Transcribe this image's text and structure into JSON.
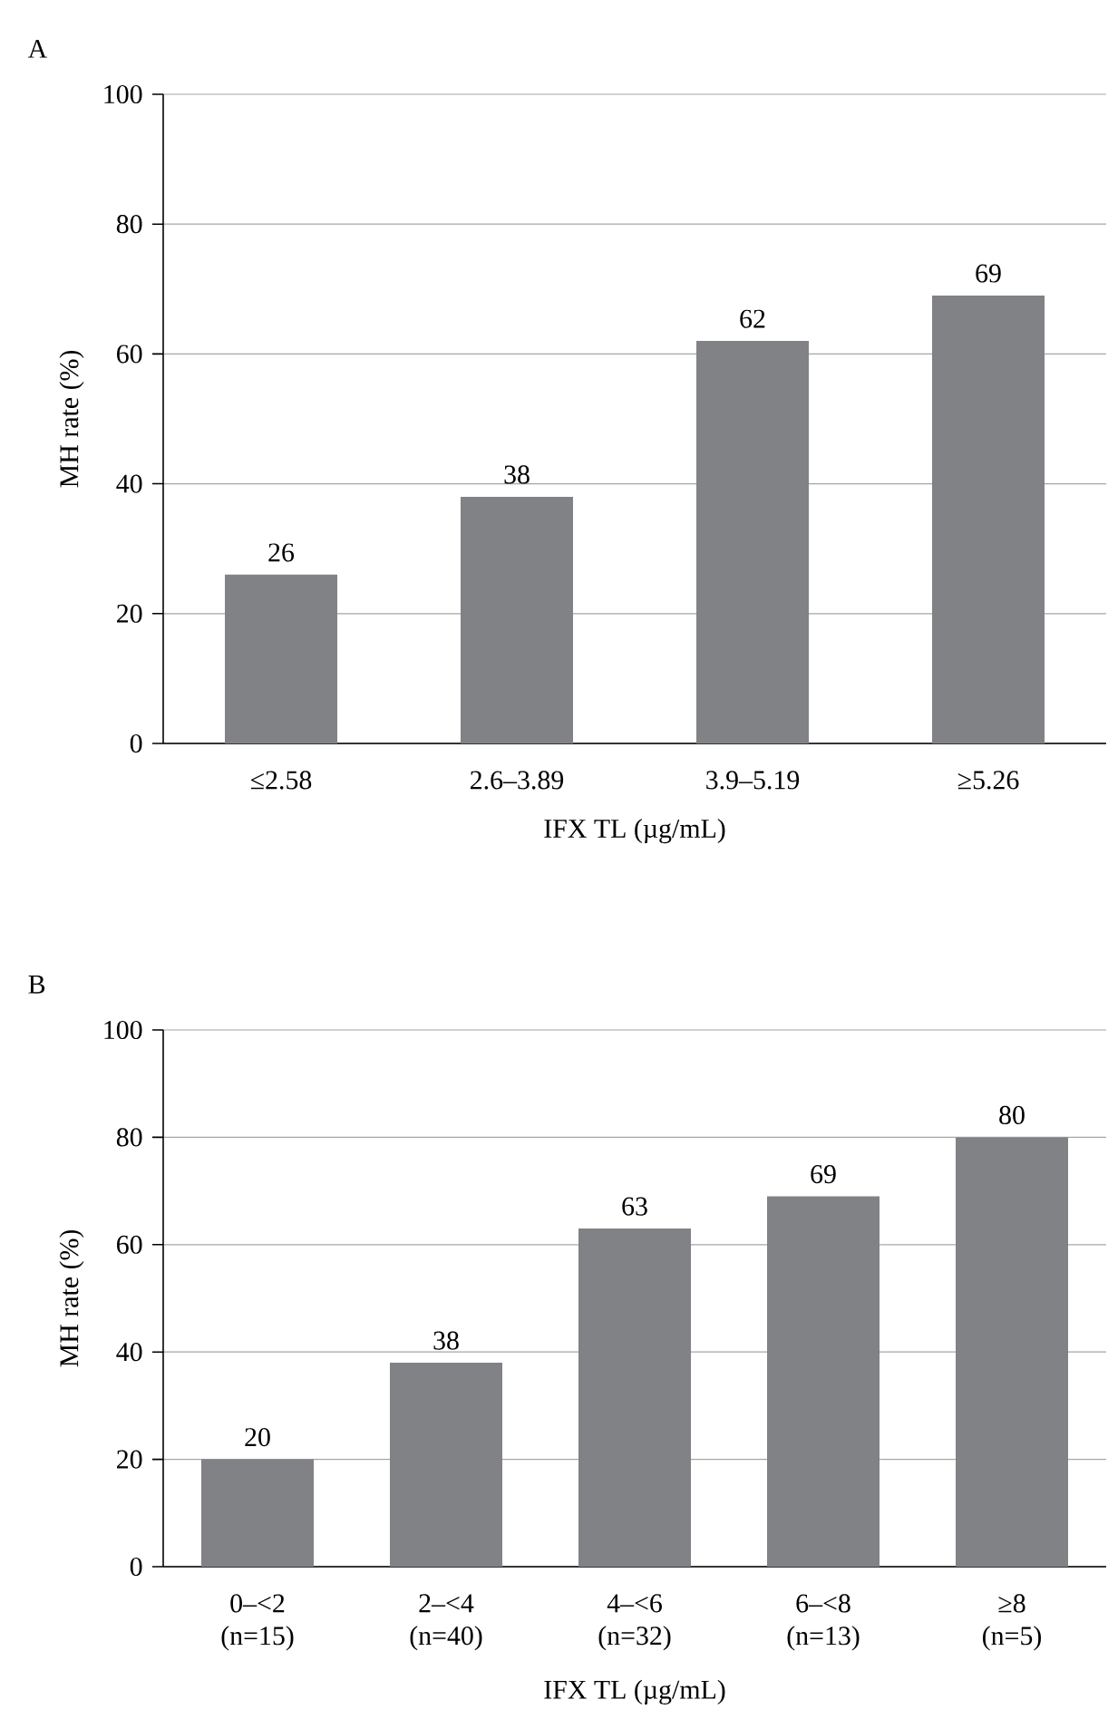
{
  "chart_data": [
    {
      "type": "bar",
      "title": "A",
      "categories": [
        "≤2.58",
        "2.6–3.89",
        "3.9–5.19",
        "≥5.26"
      ],
      "values": [
        26,
        38,
        62,
        69
      ],
      "color": "#808285",
      "ylim": [
        0,
        100
      ],
      "yticks": [
        0,
        20,
        40,
        60,
        80,
        100
      ],
      "grid": "y",
      "data_labels": true,
      "xlabel": "IFX TL (µg/mL)",
      "ylabel": "MH rate (%)"
    },
    {
      "type": "bar",
      "title": "B",
      "categories": [
        "0–<2 (n=15)",
        "2–<4 (n=40)",
        "4–<6 (n=32)",
        "6–<8 (n=13)",
        "≥8 (n=5)"
      ],
      "values": [
        20,
        38,
        63,
        69,
        80
      ],
      "color": "#808285",
      "ylim": [
        0,
        100
      ],
      "yticks": [
        0,
        20,
        40,
        60,
        80,
        100
      ],
      "grid": "y",
      "data_labels": true,
      "xlabel": "IFX TL (µg/mL)",
      "ylabel": "MH rate (%)"
    }
  ]
}
